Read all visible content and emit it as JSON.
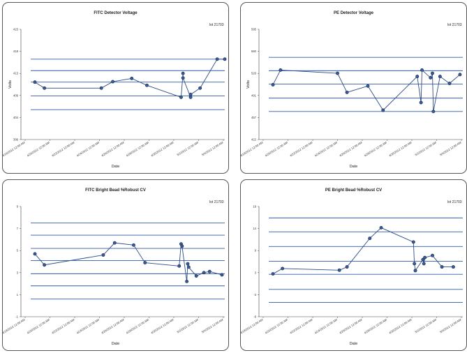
{
  "colors": {
    "control_line": "#2f5aa8",
    "series": "#2c4a86",
    "marker": "#1b2f52",
    "axis": "#444444"
  },
  "chart_data": [
    {
      "type": "line",
      "title": "FITC Detector Voltage",
      "annotation": "lot 21703",
      "xlabel": "Date",
      "ylabel": "Volts",
      "x_tick_labels": [
        "4/16/2012 12:00 AM",
        "4/20/2012 12:00 AM",
        "4/22/2012 12:00 AM",
        "4/24/2012 12:00 AM",
        "4/26/2012 12:00 AM",
        "4/28/2012 12:00 AM",
        "4/30/2012 12:00 AM",
        "5/2/2012 12:00 AM",
        "5/4/2012 12:00 AM"
      ],
      "y_tick_labels": [
        "399",
        "404",
        "409",
        "413",
        "418",
        "423"
      ],
      "ylim": [
        399,
        423
      ],
      "reference_lines": [
        405.5,
        408.5,
        411.5,
        414,
        416.5
      ],
      "grid": false,
      "series": [
        {
          "values": [
            411.5,
            410.2,
            410.2,
            411.6,
            412.3,
            410.8,
            408.2,
            413.4,
            412.4,
            408.2,
            408.8,
            410.2,
            416.5,
            416.5
          ]
        }
      ]
    },
    {
      "type": "line",
      "title": "PE Detector Voltage",
      "annotation": "lot 21703",
      "xlabel": "Date",
      "ylabel": "Volts",
      "x_tick_labels": [
        "4/18/2012 12:00 AM",
        "4/20/2012 12:00 AM",
        "4/22/2012 12:00 AM",
        "4/24/2012 12:00 AM",
        "4/26/2012 12:00 AM",
        "4/28/2012 12:00 AM",
        "4/30/2012 12:00 AM",
        "5/2/2012 12:00 AM",
        "5/4/2012 12:00 AM"
      ],
      "y_tick_labels": [
        "422",
        "457",
        "491",
        "526",
        "560",
        "595"
      ],
      "ylim": [
        422,
        595
      ],
      "reference_lines": [
        466,
        487,
        509,
        530,
        551
      ],
      "grid": false,
      "series": [
        {
          "values": [
            508,
            531,
            526,
            496,
            506,
            468,
            521,
            480,
            531,
            519,
            526,
            466,
            521,
            510,
            524
          ]
        }
      ]
    },
    {
      "type": "line",
      "title": "FITC Bright Bead %Robust CV",
      "annotation": "lot 21703",
      "xlabel": "Date",
      "ylabel": "",
      "x_tick_labels": [
        "4/18/2012 12:00 AM",
        "4/20/2012 12:00 AM",
        "4/22/2012 12:00 AM",
        "4/24/2012 12:00 AM",
        "4/26/2012 12:00 AM",
        "4/28/2012 12:00 AM",
        "4/30/2012 12:00 AM",
        "5/2/2012 12:00 AM",
        "5/4/2012 12:00 AM"
      ],
      "y_tick_labels": [
        "-1",
        "1",
        "3",
        "5",
        "7",
        "9"
      ],
      "ylim": [
        -1,
        9
      ],
      "reference_lines": [
        0.6,
        1.8,
        2.9,
        4.1,
        5.2,
        6.4,
        7.5
      ],
      "grid": false,
      "series": [
        {
          "values": [
            4.7,
            3.7,
            4.6,
            5.7,
            5.5,
            3.9,
            3.6,
            5.6,
            5.4,
            2.2,
            3.8,
            3.5,
            2.7,
            3.0,
            3.1,
            2.8
          ]
        }
      ]
    },
    {
      "type": "line",
      "title": "PE Bright Bead %Robust CV",
      "annotation": "lot 21703",
      "xlabel": "Date",
      "ylabel": "",
      "x_tick_labels": [
        "4/18/2012 12:00 AM",
        "4/20/2012 12:00 AM",
        "4/22/2012 12:00 AM",
        "4/24/2012 12:00 AM",
        "4/26/2012 12:00 AM",
        "4/28/2012 12:00 AM",
        "4/30/2012 12:00 AM",
        "5/2/2012 12:00 AM",
        "5/4/2012 12:00 AM"
      ],
      "y_tick_labels": [
        "-8",
        "-3",
        "3",
        "9",
        "14",
        "19"
      ],
      "ylim": [
        -8,
        19
      ],
      "reference_lines": [
        -4.5,
        -1.3,
        2.4,
        5.6,
        9.2,
        12.8,
        16.2
      ],
      "grid": false,
      "series": [
        {
          "values": [
            2.5,
            3.8,
            3.4,
            4.2,
            11.2,
            13.8,
            10.3,
            5.0,
            3.3,
            6.0,
            5.0,
            6.5,
            7.0,
            4.2,
            4.2
          ]
        }
      ]
    }
  ]
}
